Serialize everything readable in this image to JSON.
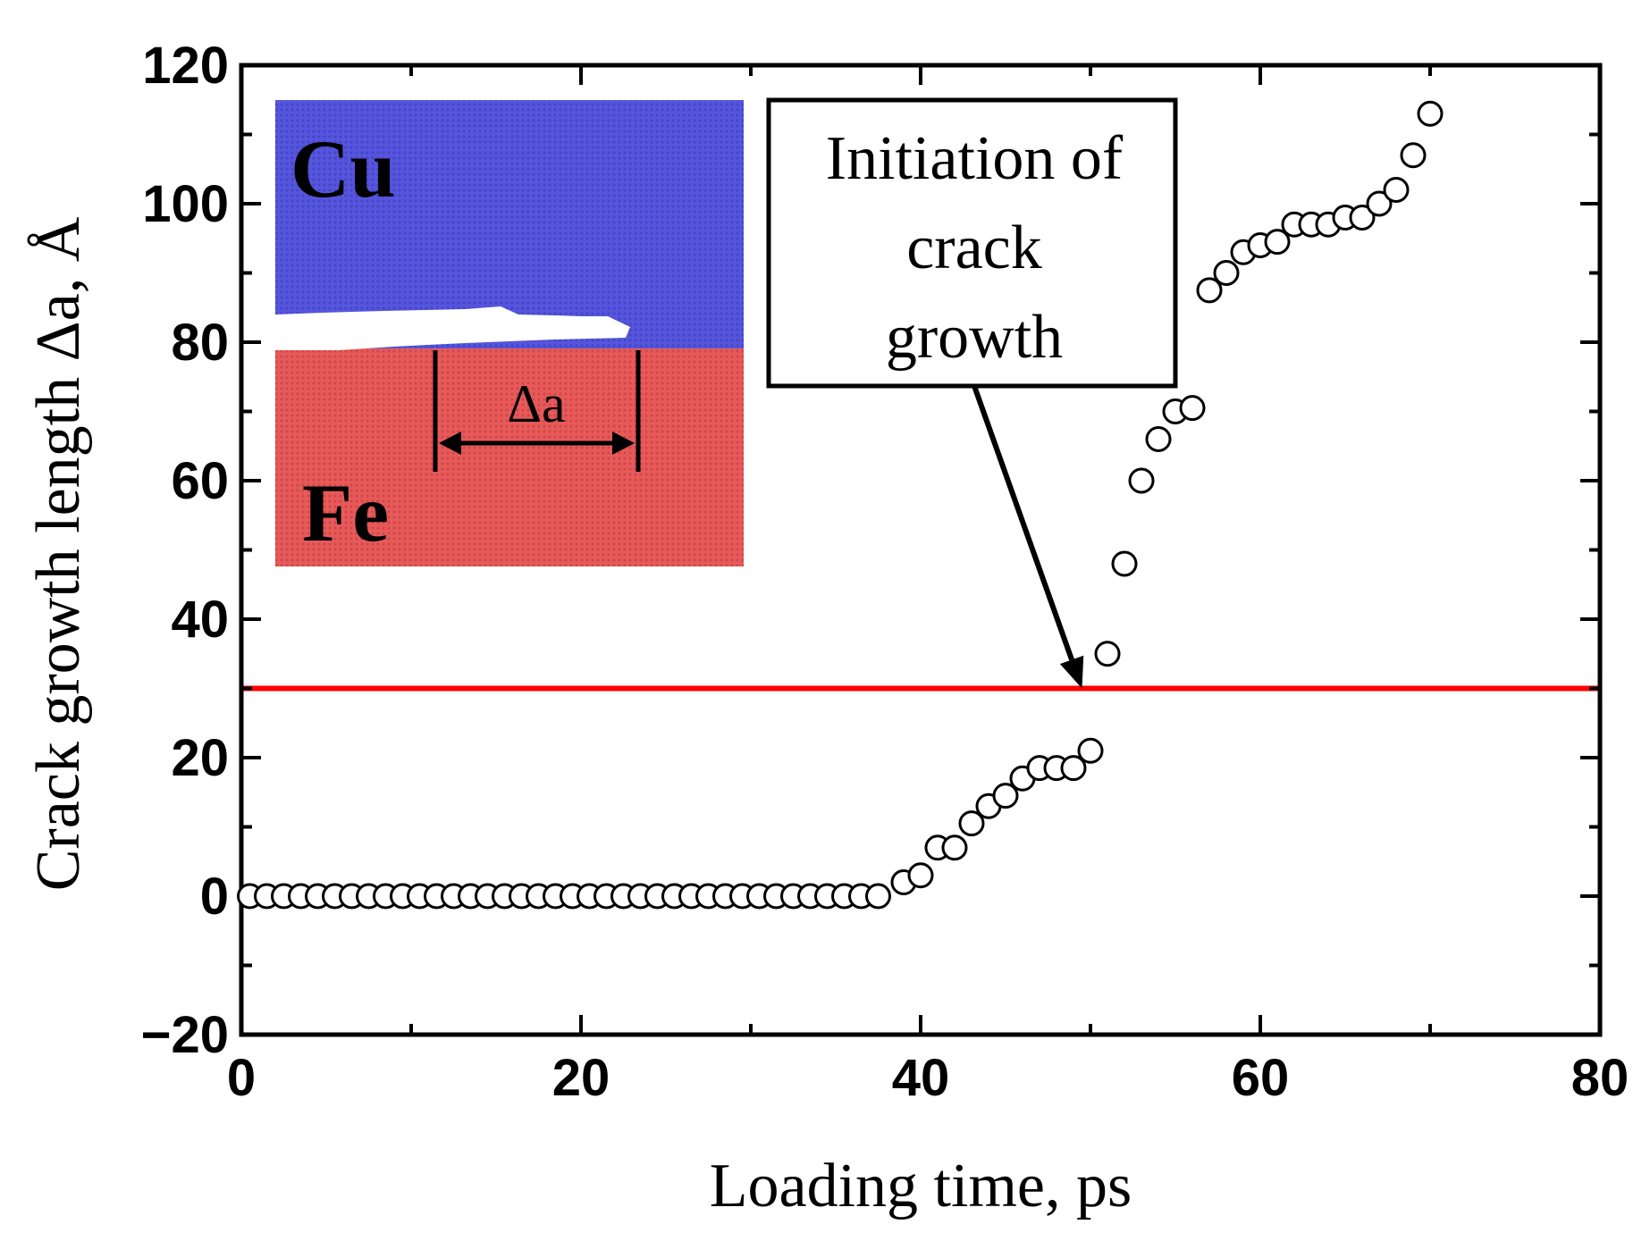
{
  "chart_data": {
    "type": "scatter",
    "title": "",
    "xlabel": "Loading time, ps",
    "ylabel": "Crack growth length Δa, Å",
    "xlim": [
      0,
      80
    ],
    "ylim": [
      -20,
      120
    ],
    "xticks": [
      0,
      20,
      40,
      60,
      80
    ],
    "yticks": [
      -20,
      0,
      20,
      40,
      60,
      80,
      100,
      120
    ],
    "xtick_labels": [
      "0",
      "20",
      "40",
      "60",
      "80"
    ],
    "ytick_labels": [
      "−20",
      "0",
      "20",
      "40",
      "60",
      "80",
      "100",
      "120"
    ],
    "grid": false,
    "marker": "open-circle",
    "series": [
      {
        "name": "Crack growth length",
        "x": [
          0.5,
          1.5,
          2.5,
          3.5,
          4.5,
          5.5,
          6.5,
          7.5,
          8.5,
          9.5,
          10.5,
          11.5,
          12.5,
          13.5,
          14.5,
          15.5,
          16.5,
          17.5,
          18.5,
          19.5,
          20.5,
          21.5,
          22.5,
          23.5,
          24.5,
          25.5,
          26.5,
          27.5,
          28.5,
          29.5,
          30.5,
          31.5,
          32.5,
          33.5,
          34.5,
          35.5,
          36.5,
          37.5,
          39,
          40,
          41,
          42,
          43,
          44,
          45,
          46,
          47,
          48,
          49,
          50,
          51,
          52,
          53,
          54,
          55,
          56,
          57,
          58,
          59,
          60,
          61,
          62,
          63,
          64,
          65,
          66,
          67,
          68,
          69,
          70
        ],
        "y": [
          0,
          0,
          0,
          0,
          0,
          0,
          0,
          0,
          0,
          0,
          0,
          0,
          0,
          0,
          0,
          0,
          0,
          0,
          0,
          0,
          0,
          0,
          0,
          0,
          0,
          0,
          0,
          0,
          0,
          0,
          0,
          0,
          0,
          0,
          0,
          0,
          0,
          0,
          2,
          3,
          7,
          7,
          10.5,
          13,
          14.5,
          17,
          18.5,
          18.5,
          18.5,
          21,
          35,
          48,
          60,
          66,
          70,
          70.5,
          87.5,
          90,
          93,
          94,
          94.5,
          97,
          97,
          97,
          98,
          98,
          100,
          102,
          107,
          113
        ]
      }
    ],
    "reference_line": {
      "orientation": "horizontal",
      "y": 30,
      "color": "#ff0000"
    },
    "annotations": [
      {
        "text_lines": [
          "Initiation of",
          "crack",
          "growth"
        ],
        "arrow_to": {
          "x": 49.5,
          "y": 30
        }
      }
    ],
    "inset": {
      "top_label": "Cu",
      "bottom_label": "Fe",
      "dimension_label": "Δa"
    }
  },
  "colors": {
    "copper_region": "#5555dd",
    "iron_region": "#e85a5a",
    "reference_line": "#ff0000",
    "axis": "#000000",
    "marker_stroke": "#000000",
    "marker_fill": "#ffffff"
  }
}
